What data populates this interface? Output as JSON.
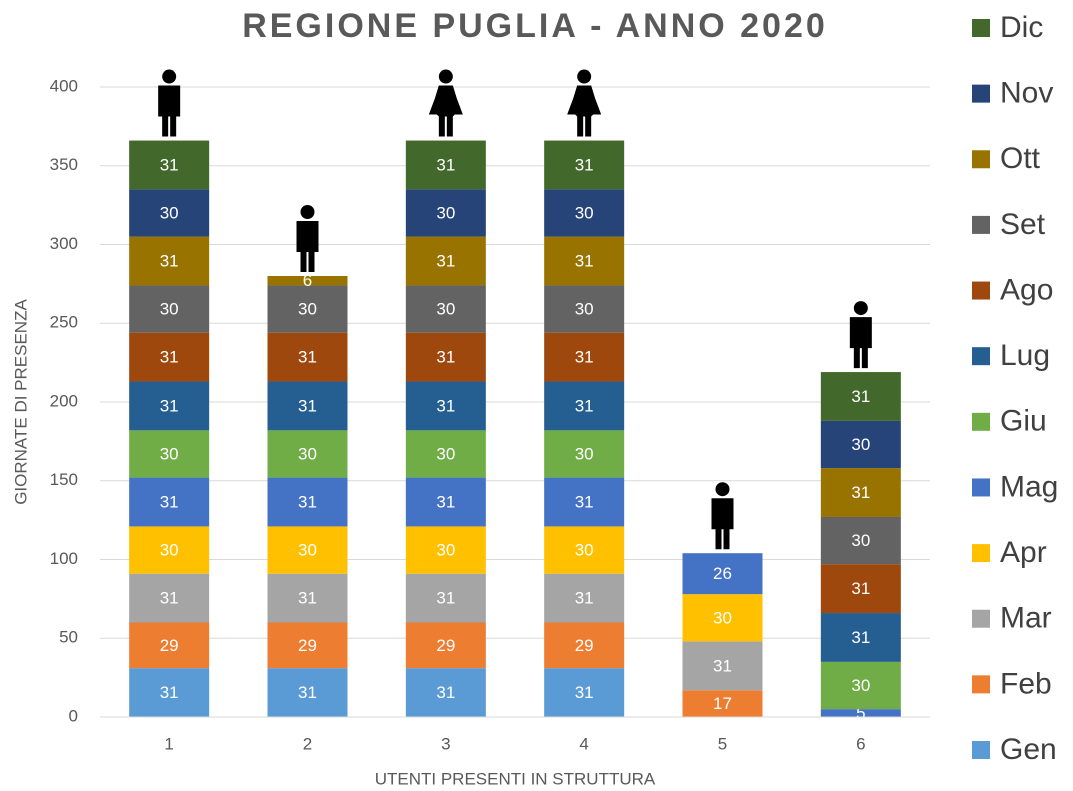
{
  "chart_data": {
    "type": "stacked_bar",
    "title": "REGIONE  PUGLIA - ANNO 2020",
    "x_label": "UTENTI PRESENTI IN STRUTTURA",
    "y_label": "GIORNATE DI PRESENZA",
    "categories": [
      "1",
      "2",
      "3",
      "4",
      "5",
      "6"
    ],
    "series": [
      {
        "name": "Gen",
        "color": "#5b9bd5",
        "values": [
          31,
          31,
          31,
          31,
          null,
          null
        ]
      },
      {
        "name": "Feb",
        "color": "#ed7d31",
        "values": [
          29,
          29,
          29,
          29,
          17,
          null
        ]
      },
      {
        "name": "Mar",
        "color": "#a5a5a5",
        "values": [
          31,
          31,
          31,
          31,
          31,
          null
        ]
      },
      {
        "name": "Apr",
        "color": "#ffc000",
        "values": [
          30,
          30,
          30,
          30,
          30,
          null
        ]
      },
      {
        "name": "Mag",
        "color": "#4472c4",
        "values": [
          31,
          31,
          31,
          31,
          26,
          5
        ]
      },
      {
        "name": "Giu",
        "color": "#70ad47",
        "values": [
          30,
          30,
          30,
          30,
          null,
          30
        ]
      },
      {
        "name": "Lug",
        "color": "#255e91",
        "values": [
          31,
          31,
          31,
          31,
          null,
          31
        ]
      },
      {
        "name": "Ago",
        "color": "#9e480e",
        "values": [
          31,
          31,
          31,
          31,
          null,
          31
        ]
      },
      {
        "name": "Set",
        "color": "#636363",
        "values": [
          30,
          30,
          30,
          30,
          null,
          30
        ]
      },
      {
        "name": "Ott",
        "color": "#997300",
        "values": [
          31,
          6,
          31,
          31,
          null,
          31
        ]
      },
      {
        "name": "Nov",
        "color": "#264478",
        "values": [
          30,
          null,
          30,
          30,
          null,
          30
        ]
      },
      {
        "name": "Dic",
        "color": "#43682b",
        "values": [
          31,
          null,
          31,
          31,
          null,
          31
        ]
      }
    ],
    "ylim": [
      0,
      400
    ],
    "yticks": [
      0,
      50,
      100,
      150,
      200,
      250,
      300,
      350,
      400
    ],
    "grid": true,
    "legend": "right"
  }
}
